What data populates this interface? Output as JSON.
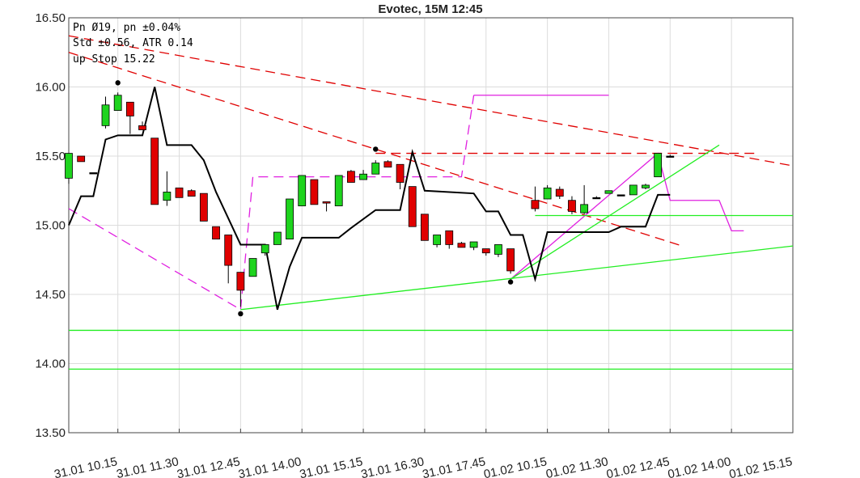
{
  "chart_data": {
    "type": "candlestick",
    "title": "Evotec, 15M 12:45",
    "info": [
      "Pn  Ø19, pn ±0.04%",
      "Std ±0.56, ATR 0.14",
      "up Stop 15.22"
    ],
    "xlim": [
      0,
      59
    ],
    "ylim": [
      13.5,
      16.5
    ],
    "grid": true,
    "up_color": "#1ed41e",
    "down_color": "#e00000",
    "xticks": [
      {
        "value": 4,
        "label": "31.01 10.15"
      },
      {
        "value": 9,
        "label": "31.01 11.30"
      },
      {
        "value": 14,
        "label": "31.01 12.45"
      },
      {
        "value": 19,
        "label": "31.01 14.00"
      },
      {
        "value": 24,
        "label": "31.01 15.15"
      },
      {
        "value": 29,
        "label": "31.01 16.30"
      },
      {
        "value": 34,
        "label": "31.01 17.45"
      },
      {
        "value": 39,
        "label": "01.02 10.15"
      },
      {
        "value": 44,
        "label": "01.02 11.30"
      },
      {
        "value": 49,
        "label": "01.02 12.45"
      },
      {
        "value": 54,
        "label": "01.02 14.00"
      },
      {
        "value": 59,
        "label": "01.02 15.15"
      }
    ],
    "yticks": [
      {
        "value": 13.5,
        "label": "13.50"
      },
      {
        "value": 14,
        "label": "14.00"
      },
      {
        "value": 14.5,
        "label": "14.50"
      },
      {
        "value": 15,
        "label": "15.00"
      },
      {
        "value": 15.5,
        "label": "15.50"
      },
      {
        "value": 16,
        "label": "16.00"
      },
      {
        "value": 16.5,
        "label": "16.50"
      }
    ],
    "candles": {
      "x": [
        0,
        1,
        2,
        3,
        4,
        5,
        6,
        7,
        8,
        9,
        10,
        11,
        12,
        13,
        14,
        15,
        16,
        17,
        18,
        19,
        20,
        21,
        22,
        23,
        24,
        25,
        26,
        27,
        28,
        29,
        30,
        31,
        32,
        33,
        34,
        35,
        36,
        38,
        39,
        40,
        41,
        42,
        43,
        44,
        45,
        46,
        47,
        48,
        49
      ],
      "open": [
        15.34,
        15.5,
        15.38,
        15.72,
        15.83,
        15.89,
        15.72,
        15.63,
        15.18,
        15.27,
        15.25,
        15.23,
        14.99,
        14.93,
        14.66,
        14.63,
        14.8,
        14.86,
        14.9,
        15.14,
        15.33,
        15.17,
        15.14,
        15.39,
        15.33,
        15.37,
        15.46,
        15.44,
        15.28,
        15.08,
        14.86,
        14.96,
        14.87,
        14.84,
        14.83,
        14.79,
        14.83,
        15.18,
        15.19,
        15.26,
        15.18,
        15.09,
        15.2,
        15.23,
        15.22,
        15.22,
        15.27,
        15.35,
        15.5
      ],
      "high": [
        15.52,
        15.5,
        15.38,
        15.93,
        15.96,
        15.89,
        15.75,
        15.63,
        15.39,
        15.27,
        15.26,
        15.23,
        14.99,
        14.93,
        14.66,
        14.76,
        14.86,
        14.95,
        15.19,
        15.36,
        15.33,
        15.17,
        15.36,
        15.4,
        15.4,
        15.47,
        15.47,
        15.44,
        15.28,
        15.08,
        14.93,
        14.96,
        14.88,
        14.88,
        14.83,
        14.86,
        14.83,
        15.28,
        15.29,
        15.28,
        15.21,
        15.29,
        15.21,
        15.25,
        15.22,
        15.29,
        15.3,
        15.52,
        15.51
      ],
      "low": [
        15.3,
        15.46,
        15.38,
        15.7,
        15.83,
        15.66,
        15.69,
        15.15,
        15.14,
        15.2,
        15.21,
        15.03,
        14.9,
        14.58,
        14.41,
        14.63,
        14.78,
        14.86,
        14.9,
        15.14,
        15.15,
        15.1,
        15.14,
        15.31,
        15.33,
        15.37,
        15.42,
        15.26,
        14.99,
        14.89,
        14.84,
        14.83,
        14.84,
        14.82,
        14.78,
        14.77,
        14.65,
        15.1,
        15.19,
        15.19,
        15.08,
        15.08,
        15.19,
        15.23,
        15.22,
        15.22,
        15.26,
        15.35,
        15.5
      ],
      "close": [
        15.52,
        15.46,
        15.38,
        15.87,
        15.94,
        15.79,
        15.69,
        15.15,
        15.24,
        15.2,
        15.21,
        15.03,
        14.9,
        14.71,
        14.53,
        14.76,
        14.86,
        14.95,
        15.19,
        15.36,
        15.15,
        15.16,
        15.36,
        15.31,
        15.37,
        15.45,
        15.42,
        15.31,
        14.99,
        14.89,
        14.93,
        14.86,
        14.84,
        14.88,
        14.8,
        14.86,
        14.67,
        15.12,
        15.27,
        15.21,
        15.1,
        15.15,
        15.2,
        15.25,
        15.22,
        15.29,
        15.29,
        15.52,
        15.5
      ]
    },
    "line": {
      "color": "#000000",
      "x": [
        0,
        1,
        2,
        3,
        4,
        6,
        7,
        8,
        10,
        11,
        12,
        13,
        14,
        16,
        17,
        18,
        19,
        22,
        23,
        25,
        27,
        28,
        29,
        33,
        34,
        35,
        36,
        37,
        38,
        39,
        44,
        45,
        47,
        48,
        49
      ],
      "y": [
        15.0,
        15.21,
        15.21,
        15.62,
        15.65,
        15.65,
        16.0,
        15.58,
        15.58,
        15.47,
        15.24,
        15.05,
        14.86,
        14.86,
        14.39,
        14.7,
        14.91,
        14.91,
        14.98,
        15.11,
        15.11,
        15.53,
        15.25,
        15.23,
        15.1,
        15.1,
        14.93,
        14.93,
        14.61,
        14.95,
        14.95,
        14.99,
        14.99,
        15.22,
        15.22
      ]
    },
    "overlays": [
      {
        "color": "#e00000",
        "dash": true,
        "x": [
          0,
          59
        ],
        "y": [
          16.37,
          15.43
        ]
      },
      {
        "color": "#e00000",
        "dash": true,
        "x": [
          0,
          50
        ],
        "y": [
          16.25,
          14.85
        ]
      },
      {
        "color": "#e00000",
        "dash": true,
        "x": [
          25,
          56
        ],
        "y": [
          15.52,
          15.52
        ]
      },
      {
        "color": "#e020e0",
        "dash": true,
        "x": [
          0,
          14,
          15,
          32,
          33
        ],
        "y": [
          15.12,
          14.39,
          15.35,
          15.35,
          15.94
        ]
      },
      {
        "color": "#e020e0",
        "dash": false,
        "x": [
          33,
          44
        ],
        "y": [
          15.94,
          15.94
        ]
      },
      {
        "color": "#e020e0",
        "dash": false,
        "x": [
          36,
          48,
          49,
          53,
          54,
          55
        ],
        "y": [
          14.61,
          15.52,
          15.18,
          15.18,
          14.96,
          14.96
        ]
      },
      {
        "color": "#22ee22",
        "dash": false,
        "x": [
          14,
          59
        ],
        "y": [
          14.39,
          14.85
        ]
      },
      {
        "color": "#22ee22",
        "dash": false,
        "x": [
          36,
          53
        ],
        "y": [
          14.61,
          15.58
        ]
      },
      {
        "color": "#22ee22",
        "dash": false,
        "x": [
          38,
          59
        ],
        "y": [
          15.07,
          15.07
        ]
      },
      {
        "color": "#22ee22",
        "dash": false,
        "x": [
          0,
          59
        ],
        "y": [
          14.24,
          14.24
        ]
      },
      {
        "color": "#22ee22",
        "dash": false,
        "x": [
          0,
          59
        ],
        "y": [
          13.96,
          13.96
        ]
      }
    ],
    "dots": {
      "color": "#000000",
      "x": [
        4,
        14,
        25,
        36
      ],
      "y": [
        16.03,
        14.36,
        15.55,
        14.59
      ]
    }
  }
}
